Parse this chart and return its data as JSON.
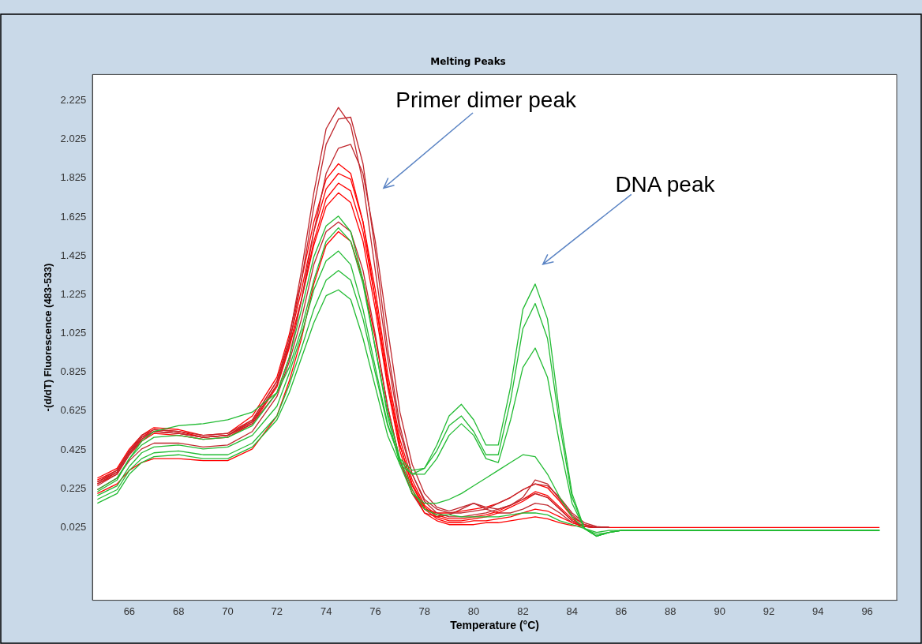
{
  "chart_data": {
    "type": "line",
    "title": "Melting Peaks",
    "xlabel": "Temperature (°C)",
    "ylabel": "-(d/dT) Fluorescence (483-533)",
    "x": [
      64.7,
      65.5,
      66,
      66.5,
      67,
      68,
      69,
      70,
      71,
      72,
      72.5,
      73,
      73.5,
      74,
      74.5,
      75,
      75.5,
      76,
      76.5,
      77,
      77.5,
      78,
      78.5,
      79,
      79.5,
      80,
      80.5,
      81,
      81.5,
      82,
      82.5,
      83,
      83.5,
      84,
      84.5,
      85,
      85.5,
      86,
      88,
      92,
      96.5
    ],
    "series": [
      {
        "color": "#22bb33",
        "values": [
          0.15,
          0.2,
          0.3,
          0.36,
          0.39,
          0.4,
          0.38,
          0.38,
          0.44,
          0.58,
          0.72,
          0.9,
          1.08,
          1.22,
          1.25,
          1.2,
          1.0,
          0.75,
          0.5,
          0.35,
          0.3,
          0.33,
          0.45,
          0.6,
          0.66,
          0.58,
          0.45,
          0.45,
          0.75,
          1.15,
          1.28,
          1.1,
          0.6,
          0.2,
          0.02,
          -0.02,
          0.0,
          0.01,
          0.01,
          0.01,
          0.01
        ]
      },
      {
        "color": "#22bb33",
        "values": [
          0.17,
          0.22,
          0.32,
          0.38,
          0.41,
          0.42,
          0.4,
          0.4,
          0.46,
          0.6,
          0.76,
          0.95,
          1.15,
          1.3,
          1.35,
          1.3,
          1.1,
          0.82,
          0.55,
          0.38,
          0.32,
          0.33,
          0.42,
          0.55,
          0.6,
          0.52,
          0.4,
          0.4,
          0.68,
          1.05,
          1.18,
          1.0,
          0.55,
          0.18,
          0.02,
          -0.02,
          0.0,
          0.01,
          0.01,
          0.01,
          0.01
        ]
      },
      {
        "color": "#22bb33",
        "values": [
          0.19,
          0.24,
          0.34,
          0.41,
          0.44,
          0.45,
          0.43,
          0.44,
          0.5,
          0.65,
          0.82,
          1.02,
          1.25,
          1.4,
          1.45,
          1.38,
          1.15,
          0.85,
          0.56,
          0.37,
          0.3,
          0.3,
          0.38,
          0.5,
          0.56,
          0.5,
          0.38,
          0.36,
          0.58,
          0.85,
          0.95,
          0.8,
          0.45,
          0.15,
          0.02,
          -0.02,
          0.0,
          0.01,
          0.01,
          0.01,
          0.01
        ]
      },
      {
        "color": "#22bb33",
        "values": [
          0.22,
          0.28,
          0.38,
          0.45,
          0.49,
          0.5,
          0.48,
          0.49,
          0.55,
          0.72,
          0.9,
          1.15,
          1.42,
          1.58,
          1.63,
          1.55,
          1.3,
          0.95,
          0.6,
          0.35,
          0.2,
          0.15,
          0.15,
          0.17,
          0.2,
          0.24,
          0.28,
          0.32,
          0.36,
          0.4,
          0.39,
          0.3,
          0.18,
          0.08,
          0.02,
          0.0,
          0.01,
          0.01,
          0.01,
          0.01,
          0.01
        ]
      },
      {
        "color": "#22bb33",
        "values": [
          0.21,
          0.27,
          0.38,
          0.47,
          0.52,
          0.55,
          0.56,
          0.58,
          0.62,
          0.72,
          0.85,
          1.05,
          1.3,
          1.5,
          1.57,
          1.5,
          1.28,
          0.95,
          0.62,
          0.38,
          0.22,
          0.12,
          0.09,
          0.09,
          0.08,
          0.08,
          0.08,
          0.08,
          0.09,
          0.1,
          0.1,
          0.09,
          0.06,
          0.04,
          0.02,
          -0.01,
          0.0,
          0.01,
          0.01,
          0.01,
          0.01
        ]
      },
      {
        "color": "#c0272d",
        "values": [
          0.26,
          0.32,
          0.42,
          0.5,
          0.53,
          0.52,
          0.5,
          0.51,
          0.58,
          0.78,
          1.0,
          1.35,
          1.75,
          2.08,
          2.19,
          2.1,
          1.8,
          1.35,
          0.9,
          0.52,
          0.3,
          0.17,
          0.12,
          0.1,
          0.1,
          0.11,
          0.12,
          0.15,
          0.18,
          0.22,
          0.25,
          0.24,
          0.18,
          0.1,
          0.05,
          0.03,
          0.025,
          null,
          null,
          null,
          null
        ]
      },
      {
        "color": "#c0272d",
        "values": [
          0.25,
          0.31,
          0.41,
          0.49,
          0.52,
          0.51,
          0.49,
          0.5,
          0.57,
          0.76,
          0.97,
          1.3,
          1.68,
          2.0,
          2.13,
          2.14,
          1.9,
          1.45,
          0.95,
          0.55,
          0.3,
          0.16,
          0.1,
          0.08,
          0.08,
          0.09,
          0.1,
          0.12,
          0.14,
          0.17,
          0.2,
          0.18,
          0.12,
          0.06,
          0.03,
          0.025,
          0.025,
          null,
          null,
          null,
          null
        ]
      },
      {
        "color": "#c0272d",
        "values": [
          0.24,
          0.3,
          0.4,
          0.48,
          0.52,
          0.51,
          0.49,
          0.5,
          0.56,
          0.72,
          0.9,
          1.2,
          1.55,
          1.85,
          1.98,
          2.0,
          1.85,
          1.5,
          1.05,
          0.62,
          0.35,
          0.2,
          0.13,
          0.11,
          0.13,
          0.15,
          0.13,
          0.12,
          0.14,
          0.18,
          0.27,
          0.25,
          0.17,
          0.09,
          0.04,
          0.025,
          0.025,
          null,
          null,
          null,
          null
        ]
      },
      {
        "color": "#ff0000",
        "values": [
          0.28,
          0.33,
          0.43,
          0.5,
          0.54,
          0.53,
          0.5,
          0.51,
          0.6,
          0.8,
          1.02,
          1.3,
          1.6,
          1.82,
          1.9,
          1.85,
          1.6,
          1.2,
          0.78,
          0.45,
          0.25,
          0.13,
          0.08,
          0.06,
          0.06,
          0.07,
          0.08,
          0.1,
          0.13,
          0.16,
          0.2,
          0.18,
          0.12,
          0.06,
          0.03,
          0.025,
          0.025,
          null,
          null,
          null,
          null
        ]
      },
      {
        "color": "#ff0000",
        "values": [
          0.27,
          0.32,
          0.42,
          0.49,
          0.53,
          0.52,
          0.49,
          0.5,
          0.58,
          0.78,
          0.98,
          1.25,
          1.55,
          1.77,
          1.85,
          1.82,
          1.6,
          1.25,
          0.82,
          0.48,
          0.27,
          0.14,
          0.09,
          0.07,
          0.07,
          0.08,
          0.09,
          0.11,
          0.14,
          0.17,
          0.21,
          0.19,
          0.13,
          0.07,
          0.03,
          0.025,
          0.025,
          null,
          null,
          null,
          null
        ]
      },
      {
        "color": "#ff0000",
        "values": [
          0.25,
          0.3,
          0.4,
          0.47,
          0.51,
          0.5,
          0.48,
          0.49,
          0.56,
          0.75,
          0.95,
          1.2,
          1.5,
          1.72,
          1.8,
          1.76,
          1.55,
          1.2,
          0.78,
          0.45,
          0.24,
          0.12,
          0.07,
          0.05,
          0.05,
          0.06,
          0.06,
          0.07,
          0.08,
          0.1,
          0.12,
          0.11,
          0.08,
          0.05,
          0.03,
          0.025,
          0.025,
          null,
          null,
          null,
          null
        ]
      },
      {
        "color": "#ff0000",
        "values": [
          0.26,
          0.31,
          0.41,
          0.48,
          0.52,
          0.51,
          0.49,
          0.5,
          0.57,
          0.76,
          0.96,
          1.2,
          1.48,
          1.68,
          1.75,
          1.7,
          1.5,
          1.15,
          0.75,
          0.42,
          0.22,
          0.1,
          0.06,
          0.04,
          0.04,
          0.04,
          0.05,
          0.05,
          0.06,
          0.07,
          0.08,
          0.07,
          0.05,
          0.035,
          0.03,
          0.025,
          0.025,
          null,
          null,
          null,
          null
        ]
      },
      {
        "color": "#c0272d",
        "values": [
          0.22,
          0.28,
          0.37,
          0.43,
          0.46,
          0.46,
          0.44,
          0.45,
          0.52,
          0.7,
          0.88,
          1.1,
          1.38,
          1.55,
          1.6,
          1.55,
          1.35,
          1.02,
          0.65,
          0.37,
          0.2,
          0.1,
          0.08,
          0.09,
          0.12,
          0.15,
          0.12,
          0.1,
          0.1,
          0.12,
          0.15,
          0.14,
          0.1,
          0.05,
          0.03,
          0.025,
          0.025,
          null,
          null,
          null,
          null
        ]
      },
      {
        "color": "#ff0000",
        "values": [
          0.2,
          0.25,
          0.32,
          0.36,
          0.38,
          0.38,
          0.37,
          0.37,
          0.43,
          0.6,
          0.78,
          1.0,
          1.28,
          1.48,
          1.55,
          1.5,
          1.3,
          1.0,
          0.65,
          0.37,
          0.2,
          0.12,
          0.1,
          0.1,
          0.11,
          0.12,
          0.13,
          0.15,
          0.18,
          0.22,
          0.25,
          0.23,
          0.16,
          0.08,
          0.04,
          0.025,
          0.025,
          0.025,
          0.025,
          0.025,
          0.025
        ]
      }
    ],
    "xlim": [
      64.5,
      97.2
    ],
    "xticks": [
      66,
      68,
      70,
      72,
      74,
      76,
      78,
      80,
      82,
      84,
      86,
      88,
      90,
      92,
      94,
      96
    ],
    "ylim": [
      -0.35,
      2.36
    ],
    "yticks": [
      0.025,
      0.225,
      0.425,
      0.625,
      0.825,
      1.025,
      1.225,
      1.425,
      1.625,
      1.825,
      2.025,
      2.225
    ],
    "grid": false,
    "legend": false,
    "marker": "none",
    "line_style": "solid",
    "annotations": [
      "Primer dimer peak",
      "DNA peak"
    ]
  }
}
